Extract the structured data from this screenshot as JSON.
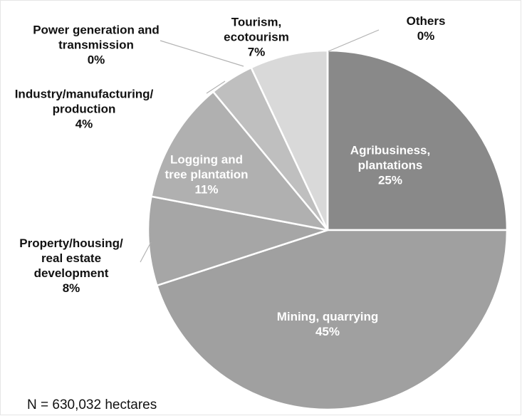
{
  "chart_data": {
    "type": "pie",
    "categories": [
      "Agribusiness,\nplantations",
      "Mining, quarrying",
      "Property/housing/\nreal estate\ndevelopment",
      "Logging and\ntree plantation",
      "Industry/manufacturing/\nproduction",
      "Power generation and\ntransmission",
      "Tourism,\necotourism",
      "Others"
    ],
    "values": [
      25,
      45,
      8,
      11,
      4,
      0,
      7,
      0
    ],
    "value_labels": [
      "25%",
      "45%",
      "8%",
      "11%",
      "4%",
      "0%",
      "7%",
      "0%"
    ],
    "colors": [
      "#898989",
      "#a0a0a0",
      "#a6a6a6",
      "#b0b0b0",
      "#bfbfbf",
      "#c8c8c8",
      "#d9d9d9",
      "#e0e0e0"
    ],
    "annotation": "N = 630,032 hectares"
  }
}
